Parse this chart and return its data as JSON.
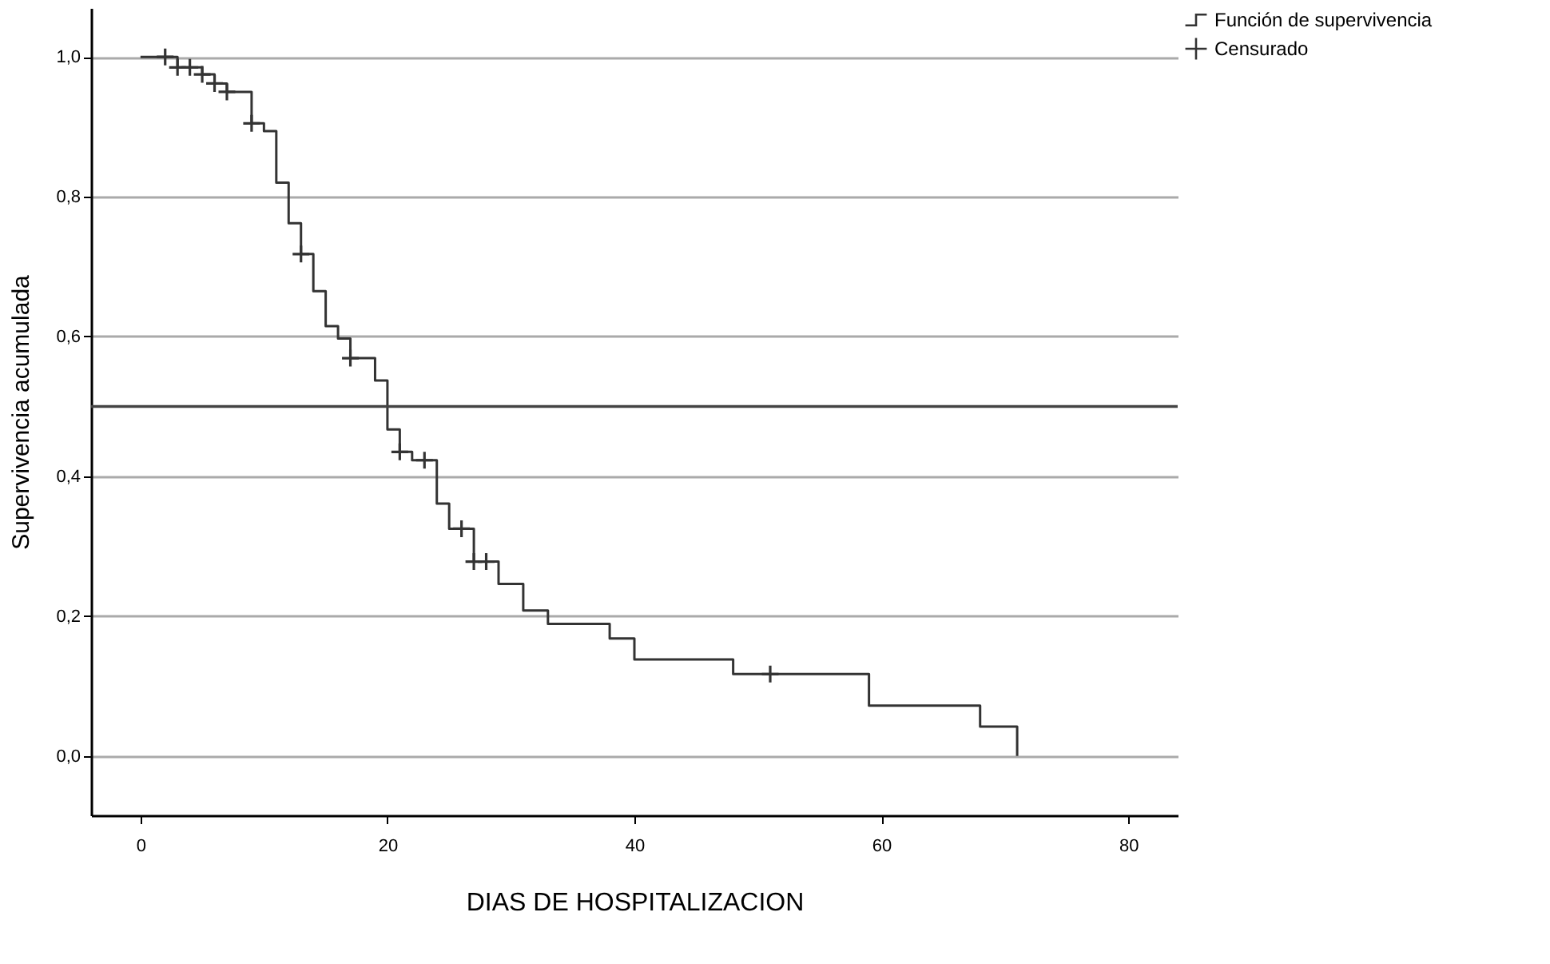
{
  "chart_data": {
    "type": "step",
    "xlabel": "DIAS DE HOSPITALIZACION",
    "ylabel": "Supervivencia acumulada",
    "xlim": [
      -4,
      84
    ],
    "ylim": [
      -0.085,
      1.07
    ],
    "xticks": [
      0,
      20,
      40,
      60,
      80
    ],
    "yticks": [
      {
        "value": 0,
        "label": "0,0"
      },
      {
        "value": 0.2,
        "label": "0,2"
      },
      {
        "value": 0.4,
        "label": "0,4"
      },
      {
        "value": 0.6,
        "label": "0,6"
      },
      {
        "value": 0.8,
        "label": "0,8"
      },
      {
        "value": 1.0,
        "label": "1,0"
      }
    ],
    "grid": "y",
    "legend": "top right",
    "ref_lines": [
      {
        "axis": "y",
        "value": 0.5,
        "color": "#444444"
      }
    ],
    "series": [
      {
        "name": "Función de supervivencia",
        "color": "#333333",
        "marker": "none",
        "x": [
          0,
          3,
          5,
          6,
          7,
          9,
          10,
          11,
          12,
          13,
          14,
          15,
          16,
          17,
          19,
          20,
          21,
          22,
          24,
          25,
          27,
          29,
          31,
          33,
          38,
          40,
          48,
          59,
          68,
          71
        ],
        "values": [
          1.0,
          0.985,
          0.975,
          0.962,
          0.95,
          0.905,
          0.894,
          0.82,
          0.762,
          0.718,
          0.665,
          0.615,
          0.597,
          0.569,
          0.537,
          0.467,
          0.435,
          0.423,
          0.361,
          0.325,
          0.278,
          0.246,
          0.208,
          0.189,
          0.168,
          0.138,
          0.117,
          0.072,
          0.042,
          0.0
        ]
      },
      {
        "name": "Censurado",
        "type": "scatter",
        "color": "#333333",
        "marker": "cross",
        "x": [
          2,
          3,
          4,
          5,
          6,
          7,
          9,
          13,
          17,
          21,
          23,
          26,
          27,
          28,
          51
        ],
        "values": [
          1.0,
          0.985,
          0.985,
          0.975,
          0.962,
          0.95,
          0.905,
          0.718,
          0.569,
          0.435,
          0.423,
          0.325,
          0.278,
          0.278,
          0.117
        ]
      }
    ]
  }
}
